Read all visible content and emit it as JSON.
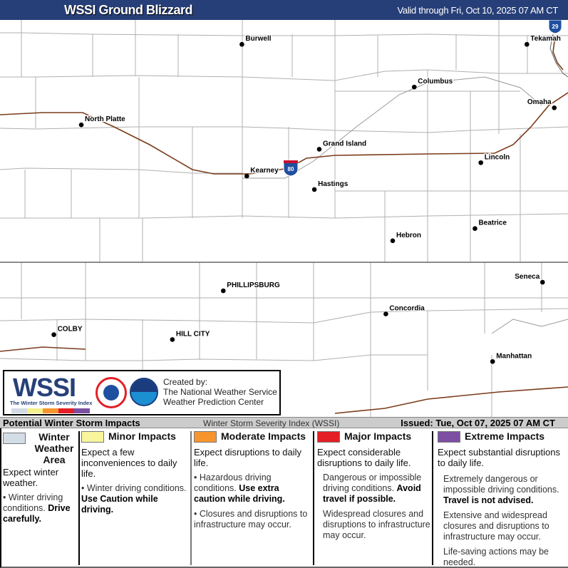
{
  "header": {
    "title": "WSSI Ground Blizzard",
    "valid": "Valid through Fri, Oct 10, 2025 07 AM CT"
  },
  "map": {
    "cities": [
      {
        "name": "Burwell",
        "lon": -99.13,
        "lat": 41.78
      },
      {
        "name": "Tekamah",
        "lon": -96.22,
        "lat": 41.78
      },
      {
        "name": "Columbus",
        "lon": -97.37,
        "lat": 41.43
      },
      {
        "name": "North Platte",
        "lon": -100.77,
        "lat": 41.12
      },
      {
        "name": "Omaha",
        "lon": -95.94,
        "lat": 41.26
      },
      {
        "name": "Grand Island",
        "lon": -98.34,
        "lat": 40.92
      },
      {
        "name": "Lincoln",
        "lon": -96.69,
        "lat": 40.81
      },
      {
        "name": "Kearney",
        "lon": -99.08,
        "lat": 40.7
      },
      {
        "name": "Hastings",
        "lon": -98.39,
        "lat": 40.59
      },
      {
        "name": "Beatrice",
        "lon": -96.75,
        "lat": 40.27
      },
      {
        "name": "Hebron",
        "lon": -97.59,
        "lat": 40.17
      },
      {
        "name": "Seneca",
        "lon": -96.06,
        "lat": 39.83
      },
      {
        "name": "PHILLIPSBURG",
        "lon": -99.32,
        "lat": 39.76
      },
      {
        "name": "Concordia",
        "lon": -97.66,
        "lat": 39.57
      },
      {
        "name": "COLBY",
        "lon": -101.05,
        "lat": 39.4
      },
      {
        "name": "HILL CITY",
        "lon": -99.84,
        "lat": 39.36
      },
      {
        "name": "Manhattan",
        "lon": -96.57,
        "lat": 39.18
      }
    ],
    "shields": [
      {
        "label": "80",
        "type": "interstate"
      },
      {
        "label": "29",
        "type": "interstate"
      }
    ],
    "colors": {
      "county": "#b0b0b0",
      "state": "#666666",
      "interstate": "#7a3b1a",
      "highway": "#999999",
      "shield": "#1f4fa0"
    }
  },
  "logo": {
    "wssi": "WSSI",
    "tm": "™",
    "subtitle": "The Winter Storm Severity Index",
    "created": [
      "Created by:",
      "The National Weather Service",
      "Weather Prediction Center"
    ],
    "scale_colors": [
      "#d3dbe6",
      "#f5f08c",
      "#f7952d",
      "#e41f26",
      "#7d4fa3"
    ]
  },
  "legend": {
    "title": "Potential Winter Storm Impacts",
    "index": "Winter Storm Severity Index (WSSI)",
    "issued": "Issued: Tue, Oct 07, 2025 07 AM CT",
    "categories": [
      {
        "label": "Winter Weather Area",
        "color": "#d3dde6",
        "expect": "Expect winter weather.",
        "b1": "Winter driving conditions.",
        "b1b": "Drive carefully."
      },
      {
        "label": "Minor Impacts",
        "color": "#f9f59c",
        "expect": "Expect a few inconveniences to daily life.",
        "b1": "Winter driving conditions.",
        "b1b": "Use Caution while driving."
      },
      {
        "label": "Moderate Impacts",
        "color": "#f7952d",
        "expect": "Expect disruptions to daily life.",
        "b1": "Hazardous driving conditions.",
        "b1b": "Use extra caution while driving.",
        "b2": "Closures and disruptions to infrastructure may occur."
      },
      {
        "label": "Major Impacts",
        "color": "#e41f26",
        "expect": "Expect considerable disruptions to daily life.",
        "b1": "Dangerous or impossible driving conditions.",
        "b1b": "Avoid travel if possible.",
        "b2": "Widespread closures and disruptions to infrastructure may occur."
      },
      {
        "label": "Extreme Impacts",
        "color": "#7d4fa3",
        "expect": "Expect substantial disruptions to daily life.",
        "b1": "Extremely dangerous or impossible driving conditions.",
        "b1b": "Travel is not advised.",
        "b2": "Extensive and widespread closures and disruptions to infrastructure may occur.",
        "b3": "Life-saving actions may be needed."
      }
    ]
  }
}
